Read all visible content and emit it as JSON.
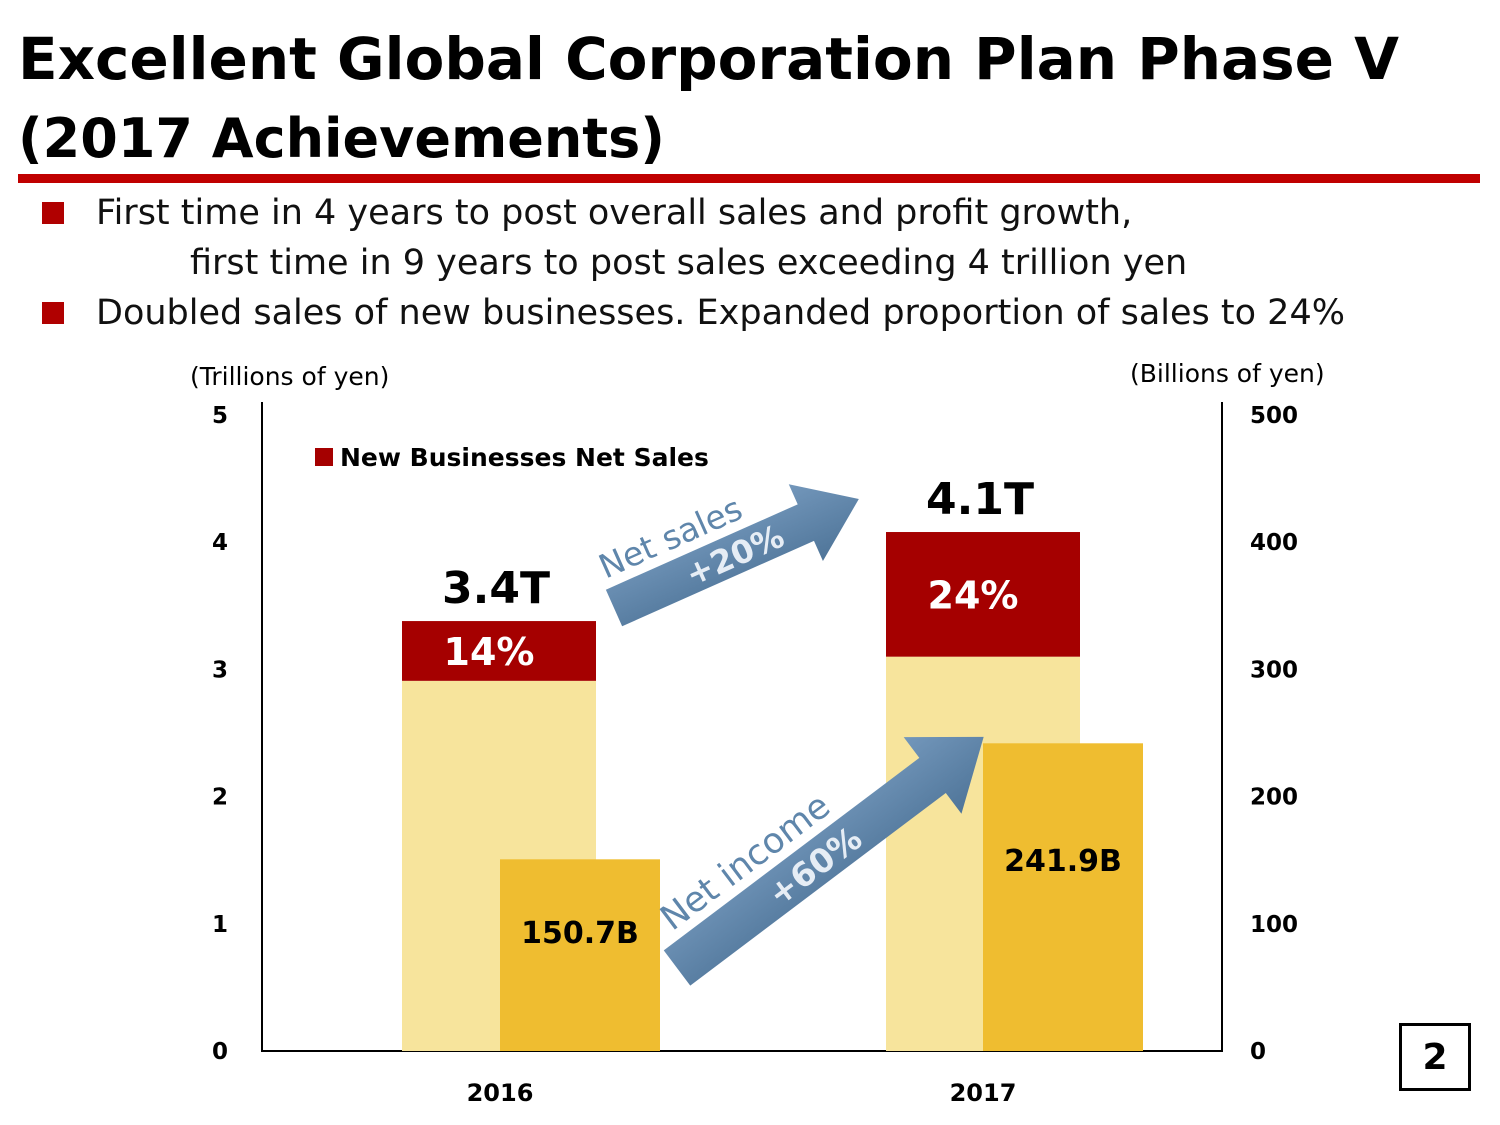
{
  "slide": {
    "title": "Excellent Global Corporation Plan Phase V",
    "subtitle": "(2017 Achievements)",
    "bullets": [
      {
        "line1": "First time in 4 years to post overall sales and profit growth,",
        "line2": "first time in 9 years to post sales exceeding 4 trillion yen"
      },
      {
        "line1": "Doubled sales of new businesses. Expanded proportion of sales to 24%"
      }
    ],
    "page_number": "2"
  },
  "colors": {
    "accent_red": "#c00000",
    "new_business_red": "#a50000",
    "net_sales_light": "#f7e49c",
    "net_income_gold": "#efbd30",
    "arrow_blue": "#5f86ab",
    "arrow_text": "#e6edf5"
  },
  "chart_data": {
    "type": "bar",
    "categories": [
      "2016",
      "2017"
    ],
    "left_axis": {
      "label": "(Trillions of yen)",
      "range": [
        0,
        5
      ],
      "ticks": [
        "0",
        "1",
        "2",
        "3",
        "4",
        "5"
      ]
    },
    "right_axis": {
      "label": "(Billions of yen)",
      "range": [
        0,
        500
      ],
      "ticks": [
        "0",
        "100",
        "200",
        "300",
        "400",
        "500"
      ]
    },
    "series": [
      {
        "name": "New Businesses Net Sales",
        "axis": "left",
        "stack": "sales",
        "values": [
          0.47,
          0.98
        ],
        "labels": [
          "14%",
          "24%"
        ]
      },
      {
        "axis": "left",
        "stack": "sales",
        "values": [
          2.91,
          3.1
        ],
        "totals": [
          3.38,
          4.08
        ],
        "total_labels": [
          "3.4T",
          "4.1T"
        ]
      },
      {
        "axis": "right",
        "values": [
          150.7,
          241.9
        ],
        "labels": [
          "150.7B",
          "241.9B"
        ]
      }
    ],
    "legend": {
      "label": "New Businesses Net Sales",
      "position": "top-left"
    },
    "annotations": [
      {
        "text": "Net sales",
        "value": "+20%",
        "kind": "arrow"
      },
      {
        "text": "Net income",
        "value": "+60%",
        "kind": "arrow"
      }
    ],
    "grid": false
  }
}
